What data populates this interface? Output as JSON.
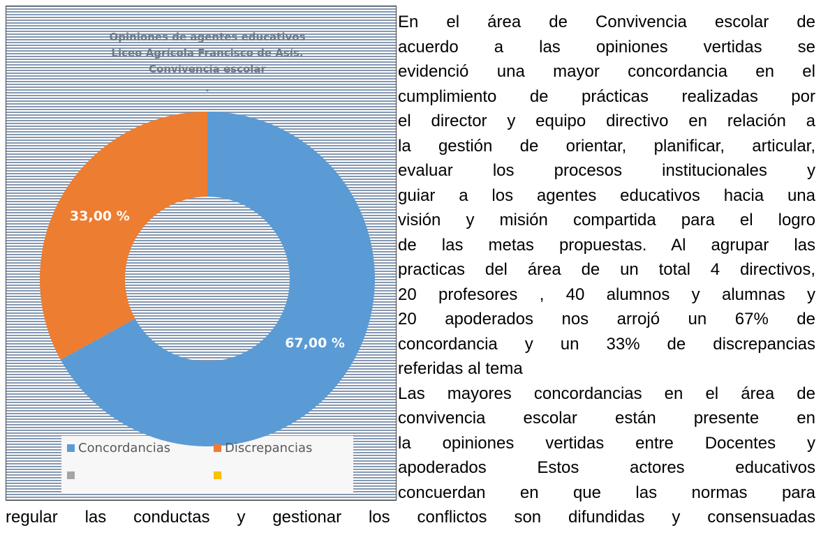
{
  "chart_data": {
    "type": "donut",
    "title": [
      "Opiniones de agentes educativos",
      "Liceo Agrícola Francisco de Asís.",
      "Convivencia escolar",
      "."
    ],
    "categories": [
      "Concordancias",
      "Discrepancias",
      null,
      null
    ],
    "values": [
      67,
      33,
      null,
      null
    ],
    "value_labels": [
      "67,00 %",
      "33,00 %",
      null,
      null
    ],
    "colors": [
      "#5b9bd5",
      "#ed7d31",
      "#a5a5a5",
      "#ffc000"
    ],
    "legend": "bottom"
  },
  "document": {
    "paragraphs": [
      [
        "En el área de Convivencia escolar de",
        "acuerdo a las opiniones vertidas se",
        "evidenció una mayor concordancia en el",
        "cumplimiento de prácticas realizadas por",
        "el director y equipo directivo en relación a",
        "la gestión de orientar, planificar, articular,",
        "evaluar los procesos institucionales y",
        "guiar a los agentes educativos hacia una",
        "visión y misión compartida para el logro",
        "de las metas propuestas. Al agrupar las",
        "practicas del área de un total 4 directivos,",
        "20 profesores , 40 alumnos y alumnas  y",
        "20 apoderados  nos arrojó un  67% de",
        "concordancia y un 33% de discrepancias",
        "referidas al tema"
      ],
      [
        "Las mayores concordancias en el área de",
        "convivencia escolar están presente en",
        "la opiniones vertidas entre Docentes y",
        "apoderados  Estos actores educativos",
        "concuerdan  en que las normas  para",
        "regular las conductas y gestionar los conflictos son  difundidas y consensuadas"
      ]
    ]
  }
}
